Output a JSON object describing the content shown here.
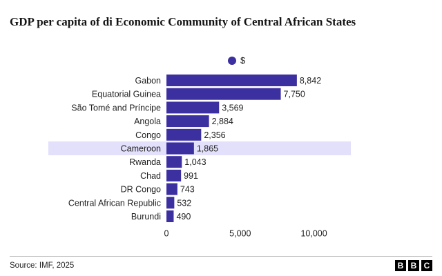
{
  "header": {
    "title": "GDP per capita of di Economic Community of Central African States"
  },
  "legend": {
    "label": "$"
  },
  "footer": {
    "source": "Source: IMF, 2025",
    "logo_letters": [
      "B",
      "B",
      "C"
    ]
  },
  "colors": {
    "bar": "#3c2fa0",
    "highlight": "#e2e0fb"
  },
  "chart_data": {
    "type": "bar",
    "orientation": "horizontal",
    "categories": [
      "Gabon",
      "Equatorial Guinea",
      "São Tomé and Príncipe",
      "Angola",
      "Congo",
      "Cameroon",
      "Rwanda",
      "Chad",
      "DR Congo",
      "Central African Republic",
      "Burundi"
    ],
    "values": [
      8842,
      7750,
      3569,
      2884,
      2356,
      1865,
      1043,
      991,
      743,
      532,
      490
    ],
    "value_labels": [
      "8,842",
      "7,750",
      "3,569",
      "2,884",
      "2,356",
      "1,865",
      "1,043",
      "991",
      "743",
      "532",
      "490"
    ],
    "highlight": "Cameroon",
    "series": [
      {
        "name": "$",
        "values": [
          8842,
          7750,
          3569,
          2884,
          2356,
          1865,
          1043,
          991,
          743,
          532,
          490
        ]
      }
    ],
    "xlim": [
      0,
      12500
    ],
    "xticks": [
      0,
      5000,
      10000
    ],
    "xtick_labels": [
      "0",
      "5,000",
      "10,000"
    ],
    "grid": false,
    "legend_position": "top-center"
  }
}
